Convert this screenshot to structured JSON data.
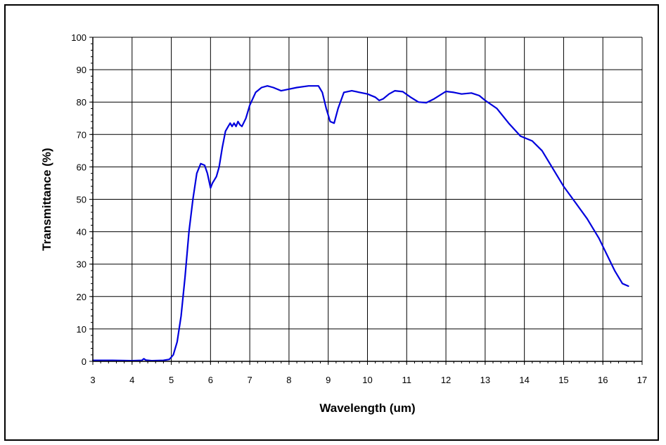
{
  "chart_data": {
    "type": "line",
    "title": "",
    "xlabel": "Wavelength (um)",
    "ylabel": "Transmittance (%)",
    "xlim": [
      3,
      17
    ],
    "ylim": [
      0,
      100
    ],
    "x_ticks": [
      3,
      4,
      5,
      6,
      7,
      8,
      9,
      10,
      11,
      12,
      13,
      14,
      15,
      16,
      17
    ],
    "y_ticks": [
      0,
      10,
      20,
      30,
      40,
      50,
      60,
      70,
      80,
      90,
      100
    ],
    "grid": true,
    "legend": "none",
    "series": [
      {
        "color": "#0000dd",
        "points": [
          [
            3.0,
            0.3
          ],
          [
            3.5,
            0.3
          ],
          [
            4.0,
            0.2
          ],
          [
            4.25,
            0.3
          ],
          [
            4.3,
            0.8
          ],
          [
            4.35,
            0.4
          ],
          [
            4.5,
            0.2
          ],
          [
            4.8,
            0.3
          ],
          [
            4.95,
            0.6
          ],
          [
            5.05,
            2
          ],
          [
            5.15,
            6
          ],
          [
            5.25,
            14
          ],
          [
            5.35,
            26
          ],
          [
            5.45,
            40
          ],
          [
            5.55,
            50
          ],
          [
            5.65,
            58
          ],
          [
            5.75,
            61
          ],
          [
            5.85,
            60.5
          ],
          [
            5.92,
            58
          ],
          [
            6.0,
            53.5
          ],
          [
            6.05,
            55
          ],
          [
            6.15,
            57
          ],
          [
            6.22,
            60
          ],
          [
            6.3,
            66
          ],
          [
            6.38,
            71
          ],
          [
            6.45,
            72.5
          ],
          [
            6.5,
            73.5
          ],
          [
            6.55,
            72.5
          ],
          [
            6.6,
            73.5
          ],
          [
            6.65,
            72.5
          ],
          [
            6.7,
            74
          ],
          [
            6.75,
            73
          ],
          [
            6.8,
            72.5
          ],
          [
            6.9,
            75
          ],
          [
            7.0,
            79
          ],
          [
            7.15,
            83
          ],
          [
            7.3,
            84.5
          ],
          [
            7.45,
            85
          ],
          [
            7.6,
            84.5
          ],
          [
            7.8,
            83.5
          ],
          [
            8.0,
            84
          ],
          [
            8.2,
            84.5
          ],
          [
            8.5,
            85
          ],
          [
            8.75,
            85
          ],
          [
            8.85,
            83
          ],
          [
            8.95,
            78
          ],
          [
            9.05,
            74
          ],
          [
            9.15,
            73.5
          ],
          [
            9.25,
            78
          ],
          [
            9.4,
            83
          ],
          [
            9.6,
            83.5
          ],
          [
            10.0,
            82.5
          ],
          [
            10.2,
            81.5
          ],
          [
            10.3,
            80.5
          ],
          [
            10.4,
            81
          ],
          [
            10.55,
            82.5
          ],
          [
            10.7,
            83.5
          ],
          [
            10.9,
            83.2
          ],
          [
            11.1,
            81.5
          ],
          [
            11.3,
            80
          ],
          [
            11.5,
            79.8
          ],
          [
            11.7,
            81
          ],
          [
            12.0,
            83.3
          ],
          [
            12.2,
            83
          ],
          [
            12.4,
            82.5
          ],
          [
            12.65,
            82.8
          ],
          [
            12.85,
            82
          ],
          [
            13.0,
            80.5
          ],
          [
            13.3,
            78
          ],
          [
            13.6,
            73.5
          ],
          [
            13.9,
            69.5
          ],
          [
            14.2,
            68
          ],
          [
            14.45,
            65
          ],
          [
            14.7,
            60
          ],
          [
            15.0,
            54
          ],
          [
            15.3,
            49
          ],
          [
            15.6,
            44
          ],
          [
            15.9,
            38
          ],
          [
            16.1,
            33
          ],
          [
            16.3,
            28
          ],
          [
            16.5,
            24
          ],
          [
            16.65,
            23.2
          ]
        ]
      }
    ]
  }
}
